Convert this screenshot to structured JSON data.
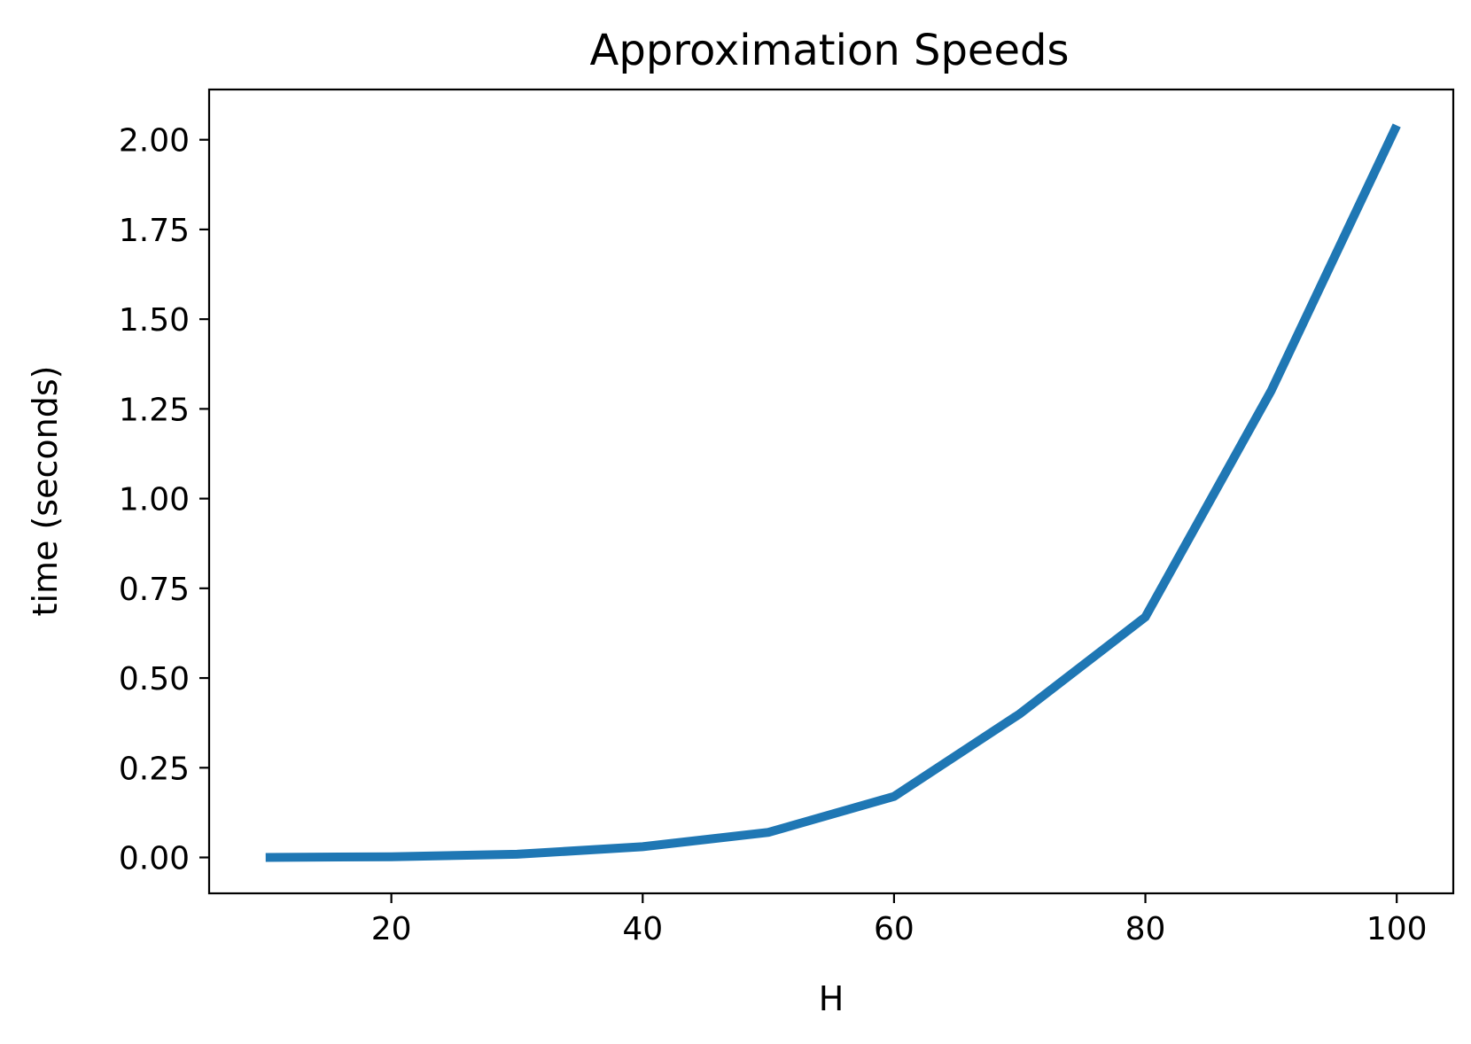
{
  "chart_data": {
    "type": "line",
    "title": "Approximation Speeds",
    "xlabel": "H",
    "ylabel": "time (seconds)",
    "x": [
      10,
      20,
      30,
      40,
      50,
      60,
      70,
      80,
      90,
      100
    ],
    "series": [
      {
        "color": "#1f77b4",
        "values": [
          0.0,
          0.002,
          0.009,
          0.03,
          0.07,
          0.17,
          0.4,
          0.67,
          1.3,
          2.04
        ]
      }
    ],
    "xlim": [
      5.5,
      104.5
    ],
    "ylim": [
      -0.1,
      2.14
    ],
    "xticks": [
      20,
      40,
      60,
      80,
      100
    ],
    "xtick_labels": [
      "20",
      "40",
      "60",
      "80",
      "100"
    ],
    "yticks": [
      0.0,
      0.25,
      0.5,
      0.75,
      1.0,
      1.25,
      1.5,
      1.75,
      2.0
    ],
    "ytick_labels": [
      "0.00",
      "0.25",
      "0.50",
      "0.75",
      "1.00",
      "1.25",
      "1.50",
      "1.75",
      "2.00"
    ],
    "grid": false,
    "legend": "none"
  }
}
